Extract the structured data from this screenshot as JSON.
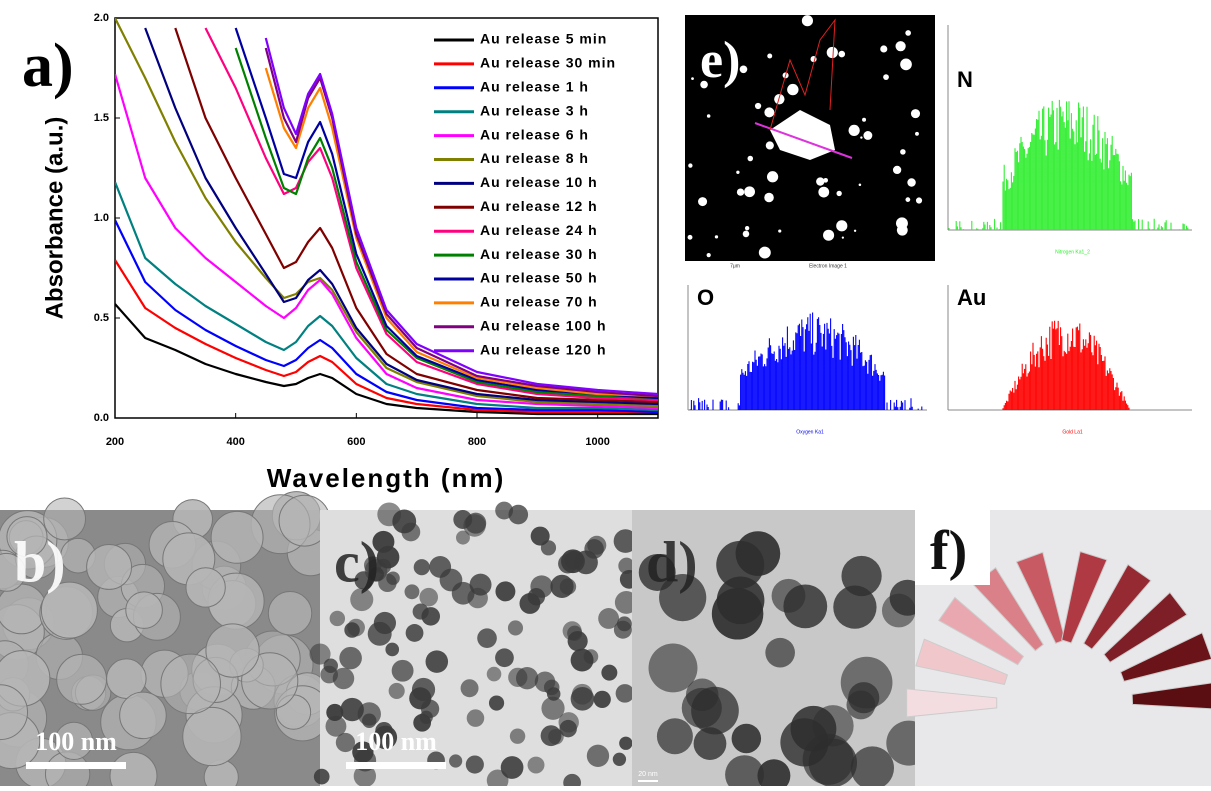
{
  "chart_data": {
    "type": "line",
    "panel_label": "a)",
    "x_label": "Wavelength (nm)",
    "y_label": "Absorbance (a.u.)",
    "x": [
      200,
      250,
      300,
      350,
      400,
      450,
      480,
      500,
      520,
      540,
      560,
      600,
      650,
      700,
      800,
      900,
      1000,
      1100
    ],
    "series": [
      {
        "name": "Au release 5 min",
        "color": "#000000",
        "values": [
          0.57,
          0.4,
          0.34,
          0.27,
          0.22,
          0.18,
          0.16,
          0.17,
          0.2,
          0.22,
          0.2,
          0.12,
          0.07,
          0.05,
          0.03,
          0.02,
          0.02,
          0.02
        ]
      },
      {
        "name": "Au release 30 min",
        "color": "#ff0000",
        "values": [
          0.79,
          0.55,
          0.45,
          0.37,
          0.3,
          0.24,
          0.21,
          0.23,
          0.28,
          0.31,
          0.28,
          0.17,
          0.1,
          0.07,
          0.04,
          0.03,
          0.03,
          0.03
        ]
      },
      {
        "name": "Au release 1 h",
        "color": "#0000ff",
        "values": [
          0.99,
          0.68,
          0.54,
          0.44,
          0.36,
          0.29,
          0.26,
          0.29,
          0.35,
          0.39,
          0.35,
          0.22,
          0.13,
          0.09,
          0.05,
          0.04,
          0.04,
          0.03
        ]
      },
      {
        "name": "Au release 3 h",
        "color": "#008080",
        "values": [
          1.18,
          0.8,
          0.67,
          0.56,
          0.47,
          0.38,
          0.34,
          0.38,
          0.46,
          0.51,
          0.46,
          0.3,
          0.17,
          0.12,
          0.07,
          0.05,
          0.05,
          0.04
        ]
      },
      {
        "name": "Au release 6 h",
        "color": "#ff00ff",
        "values": [
          1.72,
          1.2,
          0.95,
          0.8,
          0.68,
          0.56,
          0.5,
          0.55,
          0.64,
          0.69,
          0.62,
          0.4,
          0.22,
          0.15,
          0.09,
          0.07,
          0.06,
          0.05
        ]
      },
      {
        "name": "Au release 8 h",
        "color": "#808000",
        "values": [
          2.0,
          1.7,
          1.38,
          1.1,
          0.88,
          0.7,
          0.6,
          0.62,
          0.68,
          0.7,
          0.64,
          0.43,
          0.25,
          0.18,
          0.11,
          0.08,
          0.07,
          0.06
        ]
      },
      {
        "name": "Au release 10 h",
        "color": "#000080",
        "values": [
          null,
          1.95,
          1.55,
          1.2,
          0.95,
          0.72,
          0.58,
          0.6,
          0.69,
          0.74,
          0.67,
          0.45,
          0.27,
          0.19,
          0.12,
          0.09,
          0.08,
          0.07
        ]
      },
      {
        "name": "Au release 12 h",
        "color": "#800000",
        "values": [
          null,
          null,
          1.95,
          1.5,
          1.2,
          0.92,
          0.75,
          0.78,
          0.88,
          0.95,
          0.85,
          0.55,
          0.32,
          0.22,
          0.14,
          0.1,
          0.09,
          0.08
        ]
      },
      {
        "name": "Au release 24 h",
        "color": "#ff0080",
        "values": [
          null,
          null,
          null,
          1.95,
          1.65,
          1.3,
          1.12,
          1.15,
          1.28,
          1.35,
          1.2,
          0.75,
          0.42,
          0.28,
          0.17,
          0.12,
          0.1,
          0.09
        ]
      },
      {
        "name": "Au release 30 h",
        "color": "#008000",
        "values": [
          null,
          null,
          null,
          null,
          1.85,
          1.4,
          1.15,
          1.12,
          1.3,
          1.4,
          1.25,
          0.78,
          0.44,
          0.3,
          0.18,
          0.13,
          0.11,
          0.1
        ]
      },
      {
        "name": "Au release 50 h",
        "color": "#0000a0",
        "values": [
          null,
          null,
          null,
          null,
          1.95,
          1.5,
          1.22,
          1.2,
          1.38,
          1.48,
          1.32,
          0.82,
          0.46,
          0.31,
          0.19,
          0.14,
          0.12,
          0.1
        ]
      },
      {
        "name": "Au release 70 h",
        "color": "#ff8000",
        "values": [
          null,
          null,
          null,
          null,
          null,
          1.75,
          1.45,
          1.35,
          1.55,
          1.65,
          1.45,
          0.9,
          0.5,
          0.33,
          0.2,
          0.15,
          0.12,
          0.11
        ]
      },
      {
        "name": "Au release 100 h",
        "color": "#800080",
        "values": [
          null,
          null,
          null,
          null,
          null,
          1.85,
          1.5,
          1.38,
          1.6,
          1.7,
          1.5,
          0.92,
          0.52,
          0.35,
          0.21,
          0.16,
          0.13,
          0.11
        ]
      },
      {
        "name": "Au release 120 h",
        "color": "#8000ff",
        "values": [
          null,
          null,
          null,
          null,
          null,
          1.9,
          1.55,
          1.42,
          1.62,
          1.72,
          1.52,
          0.95,
          0.54,
          0.37,
          0.23,
          0.17,
          0.14,
          0.12
        ]
      }
    ],
    "xlim": [
      200,
      1100
    ],
    "xticks": [
      200,
      400,
      600,
      800,
      1000
    ],
    "ylim": [
      0,
      2.0
    ],
    "yticks": [
      {
        "value": 0,
        "label": "0.0"
      },
      0.5,
      {
        "value": 1,
        "label": "1.0"
      },
      1.5,
      {
        "value": 2,
        "label": "2.0"
      }
    ],
    "legend": "upper right"
  },
  "figure": {
    "eds_image": {
      "label": "e)",
      "scale_text": "7μm",
      "caption": "Electron Image 1"
    },
    "eds": [
      {
        "element": "N",
        "color": "#33ee33",
        "caption": "Nitrogen Ka1_2"
      },
      {
        "element": "O",
        "color": "#0000ff",
        "caption": "Oxygen Ka1"
      },
      {
        "element": "Au",
        "color": "#ff0000",
        "caption": "Gold La1"
      }
    ],
    "micrographs": [
      {
        "label": "b)",
        "scale_bar": "100 nm"
      },
      {
        "label": "c)",
        "scale_bar": "100 nm"
      },
      {
        "label": "d)",
        "scale_bar": "20 nm"
      }
    ],
    "photo": {
      "label": "f)"
    }
  }
}
